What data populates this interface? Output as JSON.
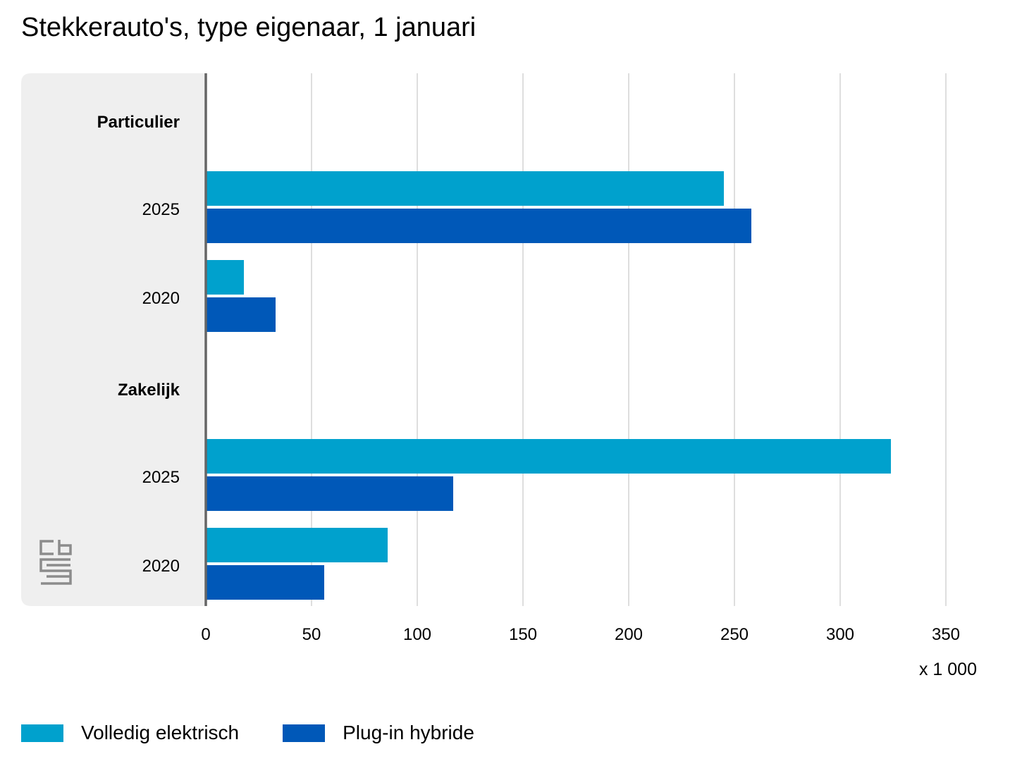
{
  "title": "Stekkerauto's, type eigenaar, 1 januari",
  "colors": {
    "volledig": "#00a1cd",
    "plugin": "#0058b8",
    "panel": "#efefef",
    "grid": "#c8c8c8",
    "axis": "#666666",
    "logo": "#8c8c8c"
  },
  "logo_icon": "cbs-logo-icon",
  "chart_data": {
    "type": "bar",
    "orientation": "horizontal",
    "title": "Stekkerauto's, type eigenaar, 1 januari",
    "xlim": [
      0,
      350
    ],
    "xticks": [
      0,
      50,
      100,
      150,
      200,
      250,
      300,
      350
    ],
    "x_unit": "x 1 000",
    "grid": true,
    "legend_position": "bottom-left",
    "groups": [
      {
        "label": "Particulier",
        "rows": [
          {
            "year": "2025",
            "values": [
              245,
              258
            ]
          },
          {
            "year": "2020",
            "values": [
              18,
              33
            ]
          }
        ]
      },
      {
        "label": "Zakelijk",
        "rows": [
          {
            "year": "2025",
            "values": [
              324,
              117
            ]
          },
          {
            "year": "2020",
            "values": [
              86,
              56
            ]
          }
        ]
      }
    ],
    "series": [
      {
        "name": "Volledig elektrisch",
        "color": "#00a1cd"
      },
      {
        "name": "Plug-in hybride",
        "color": "#0058b8"
      }
    ]
  }
}
